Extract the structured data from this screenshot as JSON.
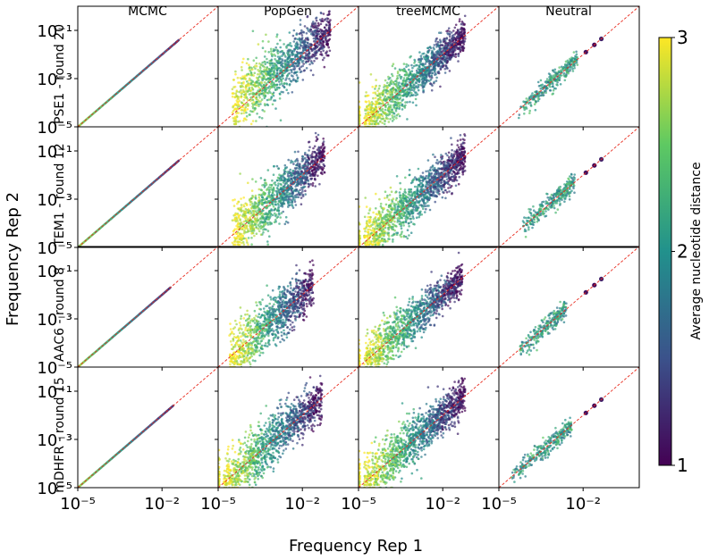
{
  "chart_data": {
    "type": "scatter",
    "title": "",
    "xlabel": "Frequency Rep 1",
    "ylabel": "Frequency Rep 2",
    "x_scale": "log",
    "y_scale": "log",
    "xlim": [
      1e-05,
      1
    ],
    "ylim": [
      1e-05,
      1
    ],
    "x_tick_values": [
      1e-05,
      0.01
    ],
    "y_tick_values": [
      1e-05,
      0.001,
      0.1
    ],
    "x_tick_labels": [
      "10⁻⁵",
      "10⁻²"
    ],
    "y_tick_labels": [
      "10⁻⁵",
      "10⁻³",
      "10⁻¹"
    ],
    "column_titles": [
      "MCMC",
      "PopGen",
      "treeMCMC",
      "Neutral"
    ],
    "row_labels": [
      "PSE1 - round 20",
      "TEM1 - round 12",
      "AAC6 - round 8",
      "mDHFR - round 15"
    ],
    "reference_line": {
      "label": "y = x",
      "color": "#e8291c",
      "style": "dashed"
    },
    "colorbar": {
      "label": "Average nucleotide distance",
      "min": 1,
      "max": 3,
      "ticks": [
        1,
        2,
        3
      ],
      "tick_labels": [
        "1",
        "2",
        "3"
      ],
      "colormap": "viridis",
      "colors": [
        "#440154",
        "#3b528b",
        "#21918c",
        "#5ec962",
        "#fde725"
      ]
    },
    "panels": [
      {
        "row": 0,
        "col": 0,
        "kind": "diagonal",
        "log10_x_range": [
          -5,
          -1.4
        ],
        "spread": 0.0,
        "n_points": 160
      },
      {
        "row": 0,
        "col": 1,
        "kind": "cloud",
        "log10_x_range": [
          -4.5,
          -1.0
        ],
        "spread": 0.45,
        "lift": 0.4,
        "n_points": 1200
      },
      {
        "row": 0,
        "col": 2,
        "kind": "cloud",
        "log10_x_range": [
          -5,
          -1.2
        ],
        "spread": 0.3,
        "lift": 0.0,
        "n_points": 1400
      },
      {
        "row": 0,
        "col": 3,
        "kind": "neutral",
        "log10_x_range": [
          -4.3,
          -2.2
        ],
        "spread": 0.2,
        "n_points": 300
      },
      {
        "row": 1,
        "col": 0,
        "kind": "diagonal",
        "log10_x_range": [
          -5,
          -1.4
        ],
        "spread": 0.0,
        "n_points": 160
      },
      {
        "row": 1,
        "col": 1,
        "kind": "cloud",
        "log10_x_range": [
          -4.5,
          -1.2
        ],
        "spread": 0.4,
        "lift": 0.0,
        "n_points": 1200
      },
      {
        "row": 1,
        "col": 2,
        "kind": "cloud",
        "log10_x_range": [
          -5,
          -1.2
        ],
        "spread": 0.35,
        "lift": 0.0,
        "n_points": 1400
      },
      {
        "row": 1,
        "col": 3,
        "kind": "neutral",
        "log10_x_range": [
          -4.2,
          -2.3
        ],
        "spread": 0.2,
        "n_points": 300
      },
      {
        "row": 2,
        "col": 0,
        "kind": "diagonal",
        "log10_x_range": [
          -5,
          -1.7
        ],
        "spread": 0.0,
        "n_points": 150
      },
      {
        "row": 2,
        "col": 1,
        "kind": "cloud",
        "log10_x_range": [
          -4.6,
          -1.6
        ],
        "spread": 0.4,
        "lift": 0.0,
        "n_points": 1100
      },
      {
        "row": 2,
        "col": 2,
        "kind": "cloud",
        "log10_x_range": [
          -5,
          -1.3
        ],
        "spread": 0.3,
        "lift": 0.0,
        "n_points": 1300
      },
      {
        "row": 2,
        "col": 3,
        "kind": "neutral",
        "log10_x_range": [
          -4.3,
          -2.6
        ],
        "spread": 0.2,
        "n_points": 250
      },
      {
        "row": 3,
        "col": 0,
        "kind": "diagonal",
        "log10_x_range": [
          -5,
          -1.6
        ],
        "spread": 0.0,
        "n_points": 160
      },
      {
        "row": 3,
        "col": 1,
        "kind": "cloud",
        "log10_x_range": [
          -5,
          -1.3
        ],
        "spread": 0.4,
        "lift": 0.0,
        "n_points": 1300
      },
      {
        "row": 3,
        "col": 2,
        "kind": "cloud",
        "log10_x_range": [
          -5,
          -1.2
        ],
        "spread": 0.35,
        "lift": 0.0,
        "n_points": 1400
      },
      {
        "row": 3,
        "col": 3,
        "kind": "neutral",
        "log10_x_range": [
          -4.6,
          -2.4
        ],
        "spread": 0.2,
        "n_points": 300
      }
    ]
  }
}
